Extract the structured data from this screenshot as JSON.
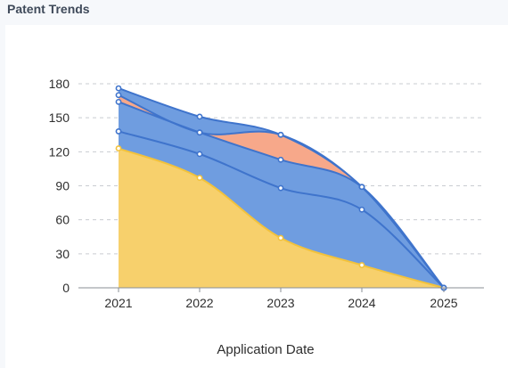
{
  "page_title": "Patent Trends",
  "chart_data": {
    "type": "area",
    "stacked": true,
    "x": [
      "2021",
      "2022",
      "2023",
      "2024",
      "2025"
    ],
    "xlabel": "Application Date",
    "ylabel": "",
    "ylim": [
      0,
      180
    ],
    "yticks": [
      0,
      30,
      60,
      90,
      120,
      150,
      180
    ],
    "grid": true,
    "series": [
      {
        "values": [
          123,
          97,
          44,
          20,
          0
        ],
        "color": "#f7d06c",
        "line": "#f2c23c"
      },
      {
        "values": [
          15,
          21,
          44,
          49,
          0
        ],
        "color": "#6f9de0",
        "line": "#3f74cc"
      },
      {
        "values": [
          26,
          19,
          25,
          20,
          0
        ],
        "color": "#6f9de0",
        "line": "#3f74cc"
      },
      {
        "values": [
          6,
          0,
          22,
          0,
          0
        ],
        "color": "#f7a88a",
        "line": "#3f74cc"
      },
      {
        "values": [
          6,
          14,
          0,
          0,
          0
        ],
        "color": "#6f9de0",
        "line": "#3f74cc"
      }
    ]
  }
}
